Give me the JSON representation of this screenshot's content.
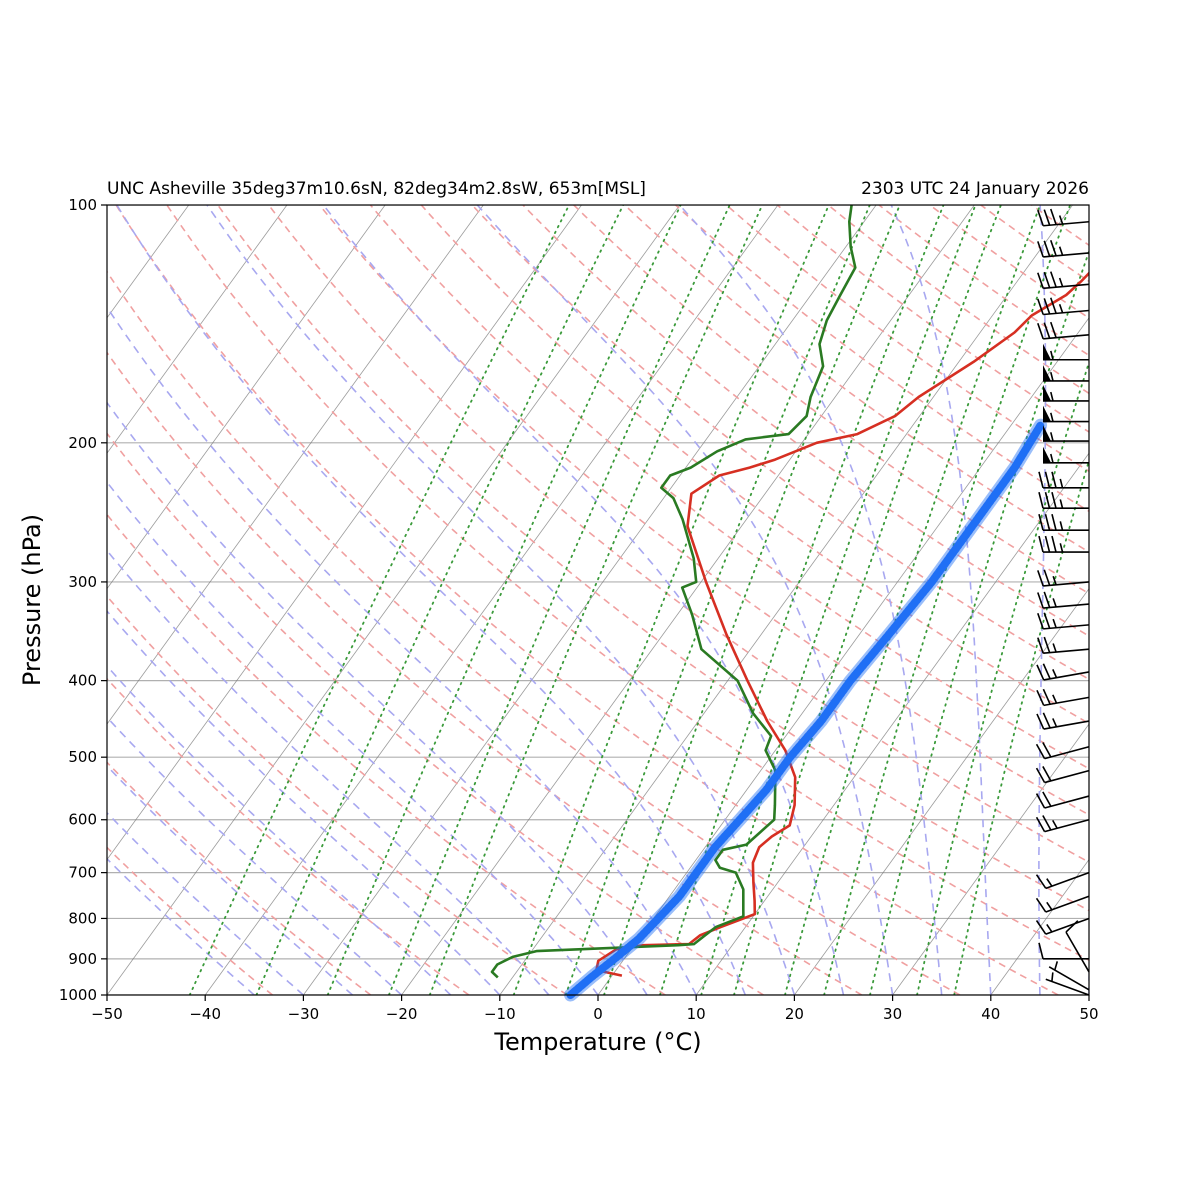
{
  "chart_data": {
    "type": "line",
    "chart_kind": "skew-T log-p diagram",
    "title_left": "UNC Asheville 35deg37m10.6sN, 82deg34m2.8sW, 653m[MSL]",
    "title_right": "2303 UTC 24 January 2026",
    "xlabel": "Temperature (°C)",
    "ylabel": "Pressure (hPa)",
    "xlim": [
      -50,
      50
    ],
    "ylim": [
      1000,
      100
    ],
    "y_scale": "log",
    "x_ticks": [
      -50,
      -40,
      -30,
      -20,
      -10,
      0,
      10,
      20,
      30,
      40,
      50
    ],
    "x_tick_labels": [
      "−50",
      "−40",
      "−30",
      "−20",
      "−10",
      "0",
      "10",
      "20",
      "30",
      "40",
      "50"
    ],
    "y_ticks": [
      1000,
      900,
      800,
      700,
      600,
      500,
      400,
      300,
      200,
      100
    ],
    "y_tick_labels": [
      "1000",
      "900",
      "800",
      "700",
      "600",
      "500",
      "400",
      "300",
      "200",
      "100"
    ],
    "grid": true,
    "legend": "none",
    "colors": {
      "temperature": "#d62f22",
      "dewpoint": "#2a7a22",
      "parcel": "#1f6ff5",
      "isotherm": "#7a7a7a",
      "dry_adiabat": "#f0a0a0",
      "moist_adiabat": "#a8a8f0",
      "mixing_ratio": "#3a9a3a",
      "gridline": "#b0b0b0",
      "barb": "#000000"
    },
    "series": [
      {
        "role": "temperature",
        "points": [
          {
            "t": 1.0,
            "p": 945
          },
          {
            "t": -2.0,
            "p": 930
          },
          {
            "t": -2.5,
            "p": 905
          },
          {
            "t": -1.5,
            "p": 875
          },
          {
            "t": 1.0,
            "p": 865
          },
          {
            "t": 5.5,
            "p": 862
          },
          {
            "t": 6.0,
            "p": 840
          },
          {
            "t": 7.5,
            "p": 820
          },
          {
            "t": 10.0,
            "p": 790
          },
          {
            "t": 9.0,
            "p": 760
          },
          {
            "t": 7.5,
            "p": 720
          },
          {
            "t": 6.0,
            "p": 680
          },
          {
            "t": 5.5,
            "p": 650
          },
          {
            "t": 6.0,
            "p": 630
          },
          {
            "t": 7.0,
            "p": 610
          },
          {
            "t": 6.0,
            "p": 575
          },
          {
            "t": 4.0,
            "p": 530
          },
          {
            "t": 1.0,
            "p": 490
          },
          {
            "t": -3.0,
            "p": 450
          },
          {
            "t": -8.0,
            "p": 400
          },
          {
            "t": -13.5,
            "p": 350
          },
          {
            "t": -19.5,
            "p": 300
          },
          {
            "t": -25.5,
            "p": 255
          },
          {
            "t": -27.5,
            "p": 232
          },
          {
            "t": -26.0,
            "p": 220
          },
          {
            "t": -23.5,
            "p": 215
          },
          {
            "t": -21.5,
            "p": 210
          },
          {
            "t": -18.5,
            "p": 200
          },
          {
            "t": -15.0,
            "p": 195
          },
          {
            "t": -12.5,
            "p": 185
          },
          {
            "t": -11.5,
            "p": 175
          },
          {
            "t": -8.5,
            "p": 158
          },
          {
            "t": -6.5,
            "p": 145
          },
          {
            "t": -6.0,
            "p": 138
          },
          {
            "t": -4.0,
            "p": 130
          },
          {
            "t": -3.5,
            "p": 125
          },
          {
            "t": -3.0,
            "p": 118
          },
          {
            "t": -6.0,
            "p": 108
          },
          {
            "t": -7.5,
            "p": 100
          }
        ]
      },
      {
        "role": "dewpoint",
        "points": [
          {
            "t": -11.5,
            "p": 950
          },
          {
            "t": -12.5,
            "p": 935
          },
          {
            "t": -12.5,
            "p": 915
          },
          {
            "t": -11.5,
            "p": 895
          },
          {
            "t": -9.5,
            "p": 880
          },
          {
            "t": 4.5,
            "p": 865
          },
          {
            "t": 6.0,
            "p": 862
          },
          {
            "t": 6.5,
            "p": 840
          },
          {
            "t": 7.0,
            "p": 820
          },
          {
            "t": 9.0,
            "p": 795
          },
          {
            "t": 8.5,
            "p": 780
          },
          {
            "t": 7.0,
            "p": 735
          },
          {
            "t": 5.0,
            "p": 700
          },
          {
            "t": 3.0,
            "p": 690
          },
          {
            "t": 2.0,
            "p": 675
          },
          {
            "t": 2.0,
            "p": 655
          },
          {
            "t": 4.0,
            "p": 645
          },
          {
            "t": 5.0,
            "p": 600
          },
          {
            "t": 4.0,
            "p": 575
          },
          {
            "t": 1.5,
            "p": 520
          },
          {
            "t": -1.0,
            "p": 490
          },
          {
            "t": -1.5,
            "p": 470
          },
          {
            "t": -5.0,
            "p": 440
          },
          {
            "t": -9.0,
            "p": 400
          },
          {
            "t": -15.0,
            "p": 365
          },
          {
            "t": -18.5,
            "p": 330
          },
          {
            "t": -21.5,
            "p": 305
          },
          {
            "t": -20.5,
            "p": 300
          },
          {
            "t": -22.5,
            "p": 280
          },
          {
            "t": -26.5,
            "p": 250
          },
          {
            "t": -29.0,
            "p": 235
          },
          {
            "t": -31.0,
            "p": 228
          },
          {
            "t": -31.0,
            "p": 220
          },
          {
            "t": -29.5,
            "p": 215
          },
          {
            "t": -28.0,
            "p": 205
          },
          {
            "t": -26.0,
            "p": 198
          },
          {
            "t": -22.0,
            "p": 195
          },
          {
            "t": -21.5,
            "p": 185
          },
          {
            "t": -22.5,
            "p": 175
          },
          {
            "t": -23.5,
            "p": 160
          },
          {
            "t": -25.5,
            "p": 150
          },
          {
            "t": -26.5,
            "p": 140
          },
          {
            "t": -27.0,
            "p": 130
          },
          {
            "t": -27.5,
            "p": 120
          },
          {
            "t": -29.5,
            "p": 113
          },
          {
            "t": -31.5,
            "p": 105
          },
          {
            "t": -32.5,
            "p": 100
          }
        ]
      },
      {
        "role": "parcel",
        "points": [
          {
            "t": -2.8,
            "p": 1000
          },
          {
            "t": -2.0,
            "p": 950
          },
          {
            "t": -1.0,
            "p": 900
          },
          {
            "t": 0.0,
            "p": 850
          },
          {
            "t": 0.5,
            "p": 800
          },
          {
            "t": 1.0,
            "p": 750
          },
          {
            "t": 1.0,
            "p": 700
          },
          {
            "t": 1.0,
            "p": 650
          },
          {
            "t": 1.5,
            "p": 600
          },
          {
            "t": 2.0,
            "p": 550
          },
          {
            "t": 2.0,
            "p": 500
          },
          {
            "t": 2.5,
            "p": 450
          },
          {
            "t": 2.5,
            "p": 400
          },
          {
            "t": 3.0,
            "p": 350
          },
          {
            "t": 3.5,
            "p": 300
          },
          {
            "t": 3.5,
            "p": 250
          },
          {
            "t": 3.5,
            "p": 215
          },
          {
            "t": 3.0,
            "p": 190
          }
        ]
      }
    ],
    "wind_barbs": [
      {
        "p": 1000,
        "speed_kt": 5,
        "dir_deg": 290
      },
      {
        "p": 985,
        "speed_kt": 5,
        "dir_deg": 300
      },
      {
        "p": 935,
        "speed_kt": 10,
        "dir_deg": 330
      },
      {
        "p": 900,
        "speed_kt": 10,
        "dir_deg": 270
      },
      {
        "p": 800,
        "speed_kt": 15,
        "dir_deg": 250
      },
      {
        "p": 750,
        "speed_kt": 15,
        "dir_deg": 250
      },
      {
        "p": 700,
        "speed_kt": 15,
        "dir_deg": 250
      },
      {
        "p": 600,
        "speed_kt": 25,
        "dir_deg": 255
      },
      {
        "p": 560,
        "speed_kt": 20,
        "dir_deg": 255
      },
      {
        "p": 520,
        "speed_kt": 20,
        "dir_deg": 255
      },
      {
        "p": 485,
        "speed_kt": 20,
        "dir_deg": 255
      },
      {
        "p": 450,
        "speed_kt": 25,
        "dir_deg": 260
      },
      {
        "p": 420,
        "speed_kt": 25,
        "dir_deg": 260
      },
      {
        "p": 390,
        "speed_kt": 25,
        "dir_deg": 260
      },
      {
        "p": 365,
        "speed_kt": 25,
        "dir_deg": 265
      },
      {
        "p": 340,
        "speed_kt": 25,
        "dir_deg": 265
      },
      {
        "p": 320,
        "speed_kt": 25,
        "dir_deg": 265
      },
      {
        "p": 300,
        "speed_kt": 25,
        "dir_deg": 265
      },
      {
        "p": 275,
        "speed_kt": 35,
        "dir_deg": 270
      },
      {
        "p": 258,
        "speed_kt": 35,
        "dir_deg": 270
      },
      {
        "p": 242,
        "speed_kt": 35,
        "dir_deg": 270
      },
      {
        "p": 228,
        "speed_kt": 35,
        "dir_deg": 270
      },
      {
        "p": 212,
        "speed_kt": 55,
        "dir_deg": 270
      },
      {
        "p": 199,
        "speed_kt": 55,
        "dir_deg": 270
      },
      {
        "p": 188,
        "speed_kt": 55,
        "dir_deg": 270
      },
      {
        "p": 177,
        "speed_kt": 55,
        "dir_deg": 270
      },
      {
        "p": 167,
        "speed_kt": 55,
        "dir_deg": 270
      },
      {
        "p": 157,
        "speed_kt": 55,
        "dir_deg": 270
      },
      {
        "p": 146,
        "speed_kt": 30,
        "dir_deg": 265
      },
      {
        "p": 136,
        "speed_kt": 35,
        "dir_deg": 265
      },
      {
        "p": 126,
        "speed_kt": 35,
        "dir_deg": 265
      },
      {
        "p": 115,
        "speed_kt": 35,
        "dir_deg": 265
      },
      {
        "p": 105,
        "speed_kt": 35,
        "dir_deg": 265
      }
    ]
  }
}
